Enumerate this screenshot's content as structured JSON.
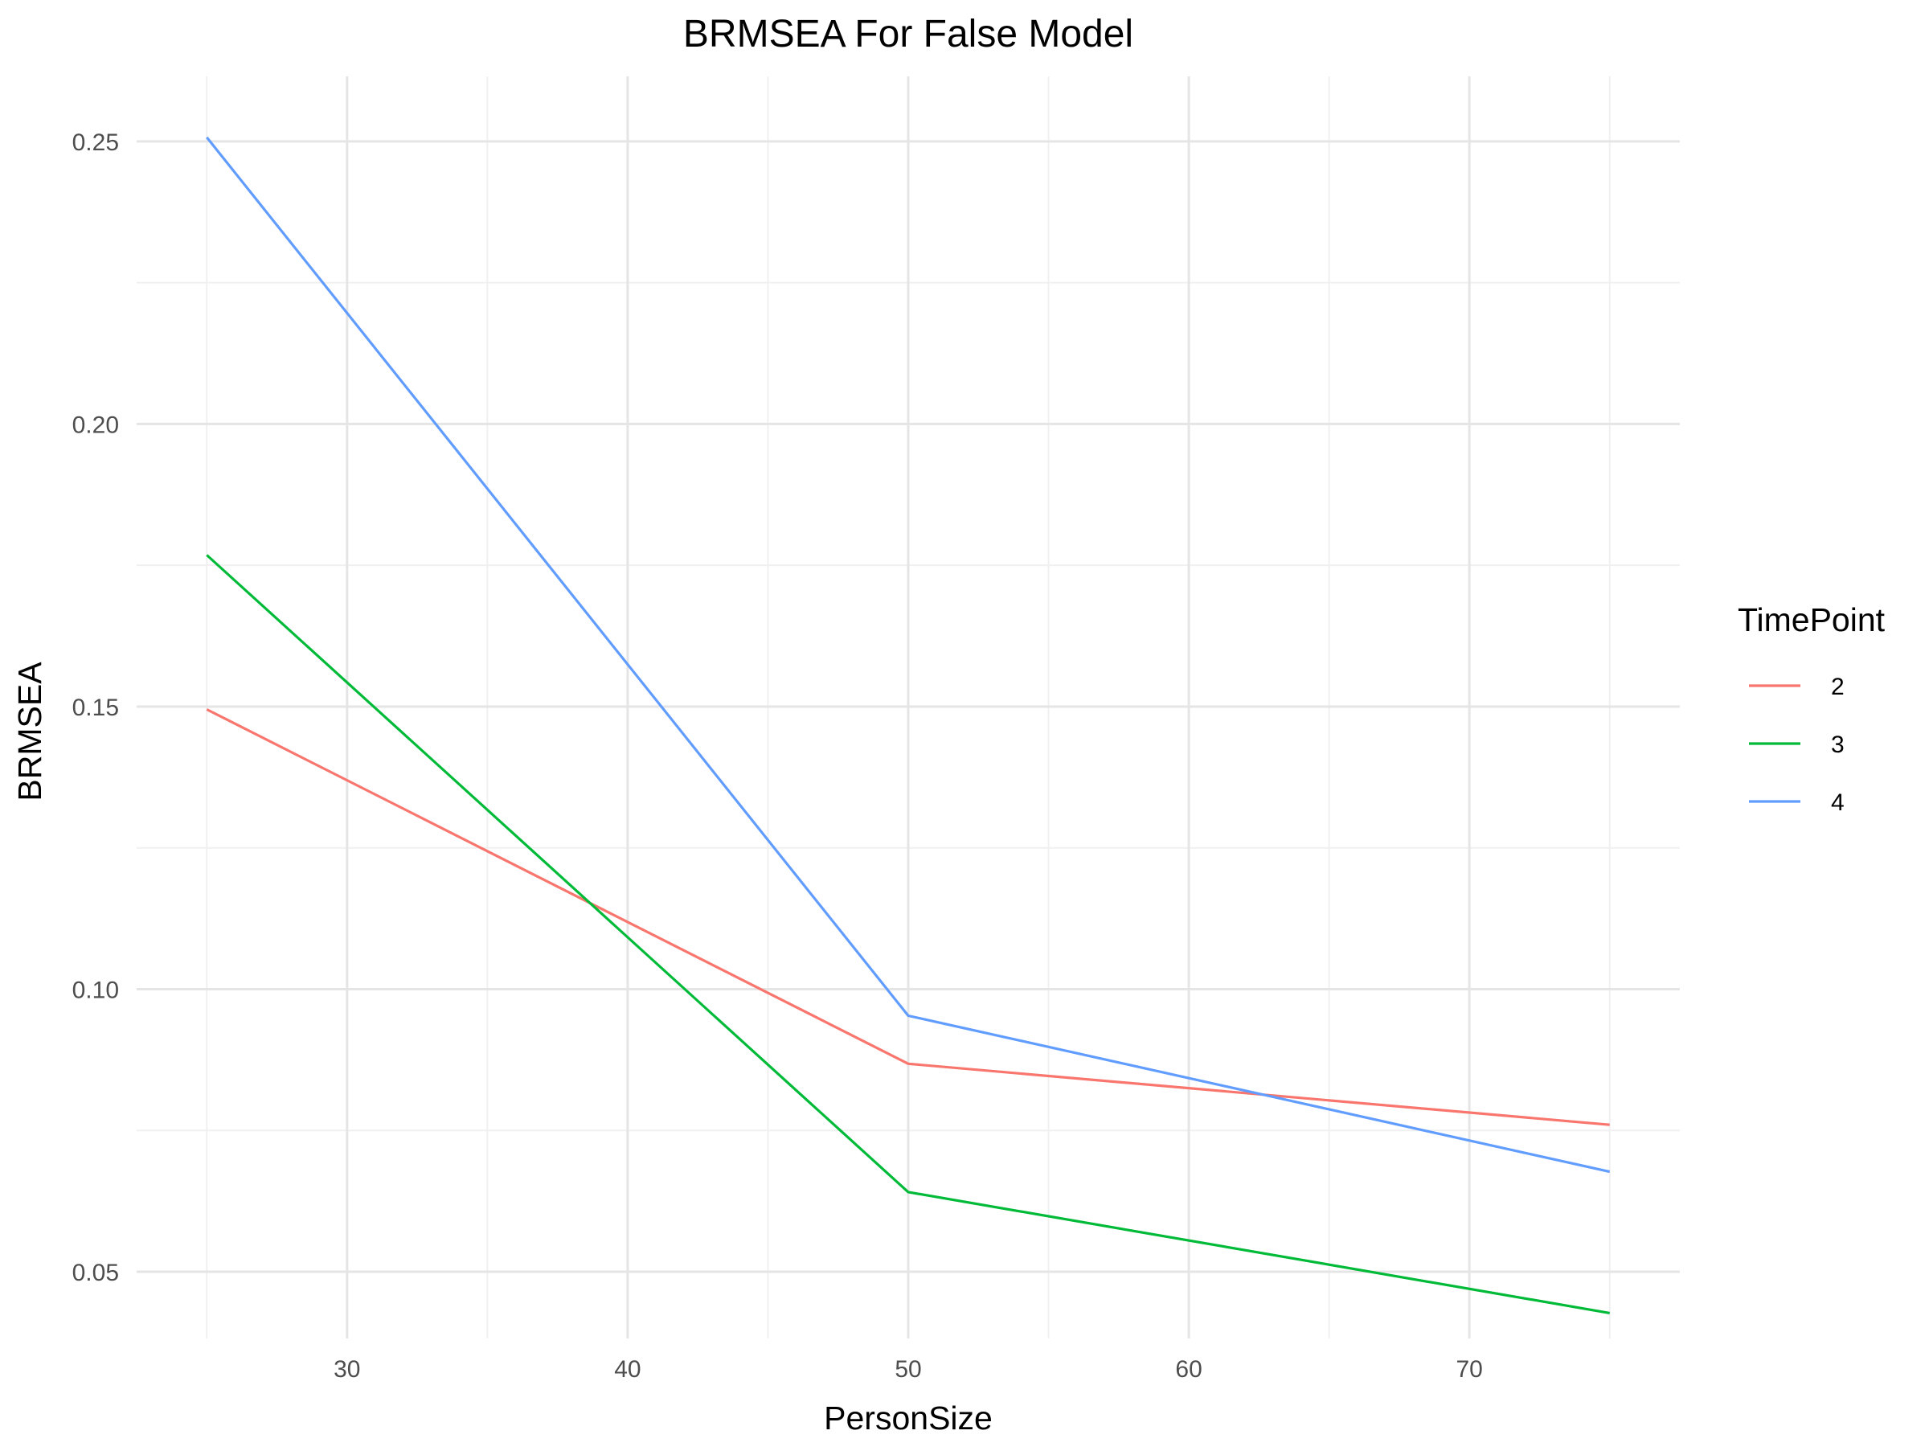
{
  "chart_data": {
    "type": "line",
    "title": "BRMSEA For False Model",
    "xlabel": "PersonSize",
    "ylabel": "BRMSEA",
    "x": [
      25,
      50,
      75
    ],
    "xlim": [
      22.5,
      77.5
    ],
    "ylim": [
      0.0382,
      0.2615
    ],
    "x_major_ticks": [
      30,
      40,
      50,
      60,
      70
    ],
    "x_tick_labels": [
      "30",
      "40",
      "50",
      "60",
      "70"
    ],
    "x_minor_ticks": [
      25,
      35,
      45,
      55,
      65,
      75
    ],
    "y_major_ticks": [
      0.05,
      0.1,
      0.15,
      0.2,
      0.25
    ],
    "y_tick_labels": [
      "0.05",
      "0.10",
      "0.15",
      "0.20",
      "0.25"
    ],
    "y_minor_ticks": [
      0.075,
      0.125,
      0.175,
      0.225
    ],
    "grid": true,
    "legend": {
      "title": "TimePoint",
      "position": "right"
    },
    "series": [
      {
        "name": "2",
        "color": "#F8766D",
        "values": [
          0.1495,
          0.0868,
          0.076
        ]
      },
      {
        "name": "3",
        "color": "#00BA38",
        "values": [
          0.1768,
          0.0641,
          0.0427
        ]
      },
      {
        "name": "4",
        "color": "#619CFF",
        "values": [
          0.2507,
          0.0953,
          0.0677
        ]
      }
    ]
  }
}
